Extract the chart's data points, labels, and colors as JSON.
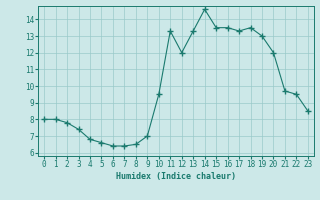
{
  "x": [
    0,
    1,
    2,
    3,
    4,
    5,
    6,
    7,
    8,
    9,
    10,
    11,
    12,
    13,
    14,
    15,
    16,
    17,
    18,
    19,
    20,
    21,
    22,
    23
  ],
  "y": [
    8.0,
    8.0,
    7.8,
    7.4,
    6.8,
    6.6,
    6.4,
    6.4,
    6.5,
    7.0,
    9.5,
    13.3,
    12.0,
    13.3,
    14.6,
    13.5,
    13.5,
    13.3,
    13.5,
    13.0,
    12.0,
    9.7,
    9.5,
    8.5
  ],
  "xlabel": "Humidex (Indice chaleur)",
  "xlim": [
    -0.5,
    23.5
  ],
  "ylim": [
    5.8,
    14.8
  ],
  "yticks": [
    6,
    7,
    8,
    9,
    10,
    11,
    12,
    13,
    14
  ],
  "xticks": [
    0,
    1,
    2,
    3,
    4,
    5,
    6,
    7,
    8,
    9,
    10,
    11,
    12,
    13,
    14,
    15,
    16,
    17,
    18,
    19,
    20,
    21,
    22,
    23
  ],
  "line_color": "#1a7a6e",
  "bg_color": "#cce8e8",
  "grid_color": "#9acaca",
  "label_color": "#1a7a6e",
  "tick_color": "#1a7a6e",
  "spine_color": "#1a7a6e"
}
